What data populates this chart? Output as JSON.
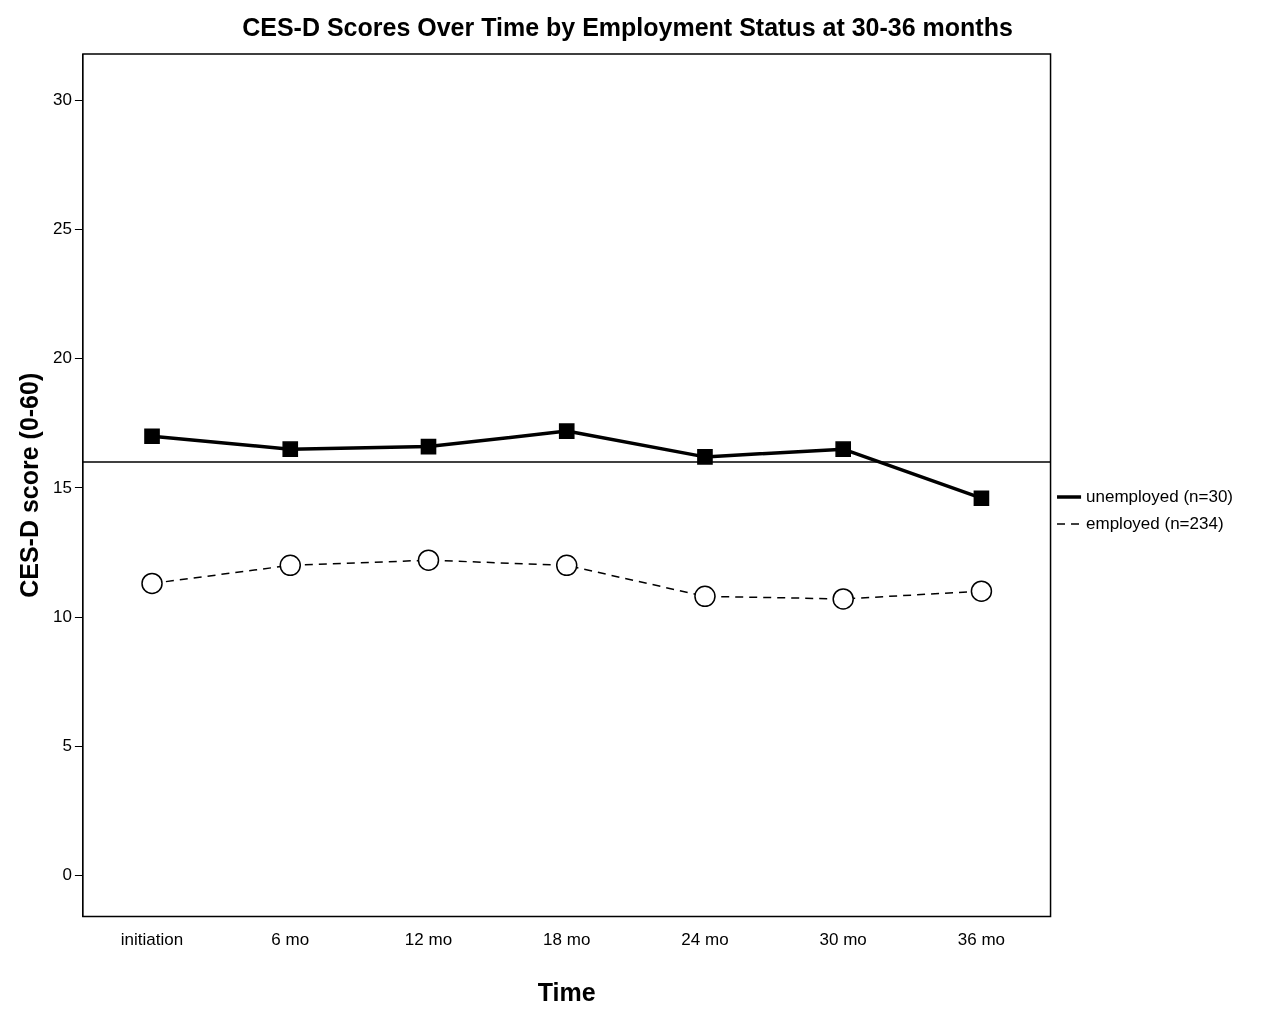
{
  "chart_data": {
    "type": "line",
    "title": "CES-D Scores Over Time by Employment Status at 30-36 months",
    "xlabel": "Time",
    "ylabel": "CES-D score (0-60)",
    "categories": [
      "initiation",
      "6 mo",
      "12 mo",
      "18 mo",
      "24 mo",
      "30 mo",
      "36 mo"
    ],
    "series": [
      {
        "name": "unemployed (n=30)",
        "color": "#000000",
        "marker": "square",
        "line_style": "solid",
        "values": [
          17.0,
          16.5,
          16.6,
          17.2,
          16.2,
          16.5,
          14.6
        ]
      },
      {
        "name": "employed (n=234)",
        "color": "#000000",
        "marker": "circle",
        "line_style": "dashed",
        "values": [
          11.3,
          12.0,
          12.2,
          12.0,
          10.8,
          10.7,
          11.0
        ]
      }
    ],
    "ylim": [
      -1.6,
      31.8
    ],
    "yticks": [
      0,
      5,
      10,
      15,
      20,
      25,
      30
    ],
    "ref_lines": [
      {
        "axis": "y",
        "value": 16
      }
    ],
    "grid": false,
    "legend": "right"
  }
}
